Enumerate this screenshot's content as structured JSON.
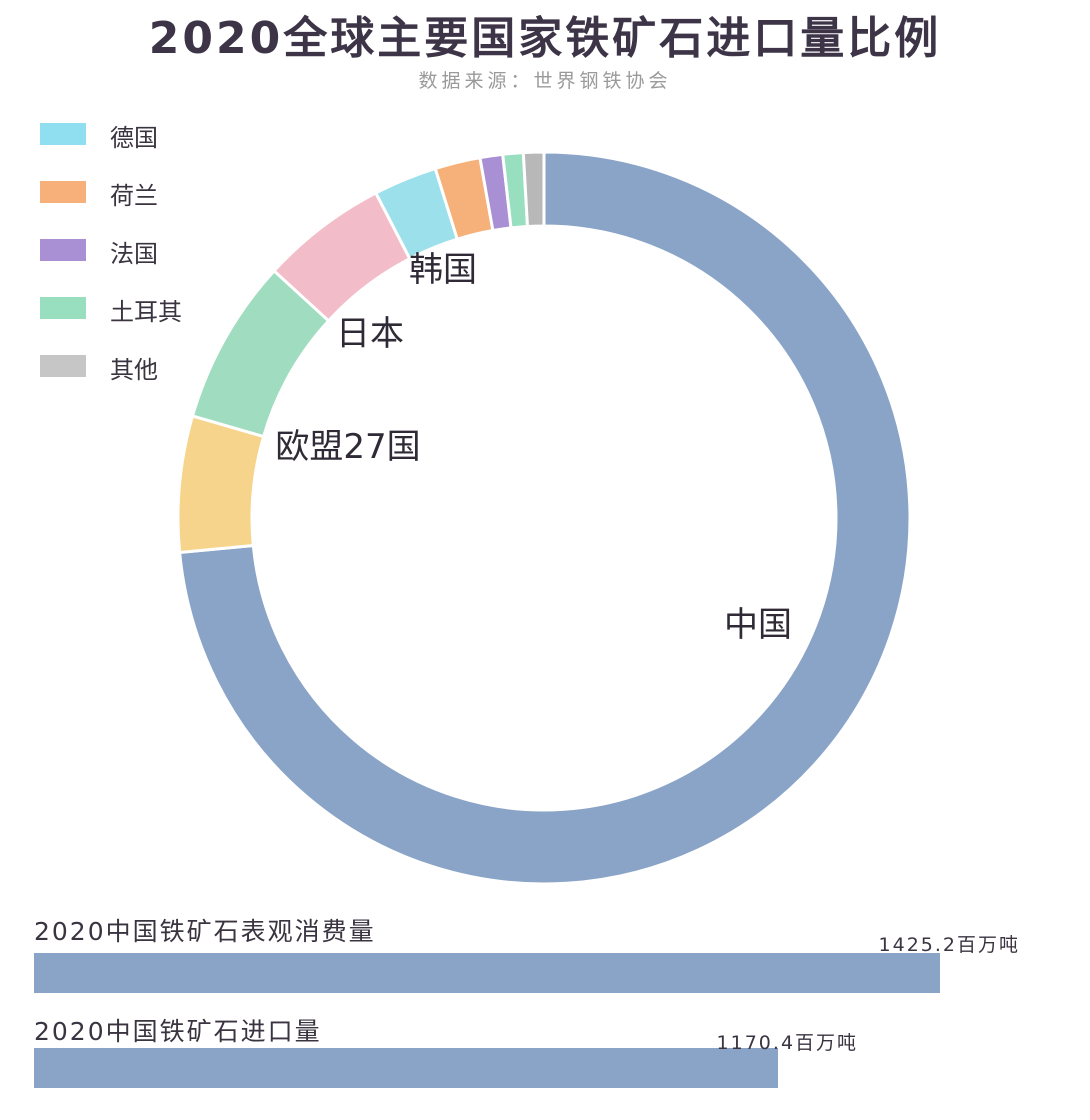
{
  "title": "2020全球主要国家铁矿石进口量比例",
  "subtitle": "数据来源：世界钢铁协会",
  "legend": [
    {
      "label": "德国",
      "color": "#8fdff0"
    },
    {
      "label": "荷兰",
      "color": "#f7b07a"
    },
    {
      "label": "法国",
      "color": "#a98fd4"
    },
    {
      "label": "土耳其",
      "color": "#98dfbf"
    },
    {
      "label": "其他",
      "color": "#c6c6c6"
    }
  ],
  "chart_data": [
    {
      "type": "pie",
      "subtype": "donut",
      "segments": [
        {
          "name": "中国",
          "value": 73.5,
          "color": "#8aa4c8",
          "labeled": true
        },
        {
          "name": "欧盟27国",
          "value": 6.0,
          "color": "#f6d48c",
          "labeled": true
        },
        {
          "name": "日本",
          "value": 7.3,
          "color": "#9fdcc0",
          "labeled": true
        },
        {
          "name": "韩国",
          "value": 5.6,
          "color": "#f2bcc8",
          "labeled": true
        },
        {
          "name": "德国",
          "value": 2.8,
          "color": "#9be0ea",
          "labeled": false
        },
        {
          "name": "荷兰",
          "value": 2.0,
          "color": "#f6b07a",
          "labeled": false
        },
        {
          "name": "法国",
          "value": 1.0,
          "color": "#a98fd4",
          "labeled": false
        },
        {
          "name": "土耳其",
          "value": 0.9,
          "color": "#98dfbf",
          "labeled": false
        },
        {
          "name": "其他",
          "value": 0.9,
          "color": "#b8b8b8",
          "labeled": false
        }
      ]
    },
    {
      "type": "bar",
      "orientation": "horizontal",
      "series": [
        {
          "name": "2020中国铁矿石表观消费量",
          "value": 1425.2,
          "value_label": "1425.2百万吨"
        },
        {
          "name": "2020中国铁矿石进口量",
          "value": 1170.4,
          "value_label": "1170.4百万吨"
        }
      ],
      "unit": "百万吨",
      "color": "#8aa4c8"
    }
  ]
}
